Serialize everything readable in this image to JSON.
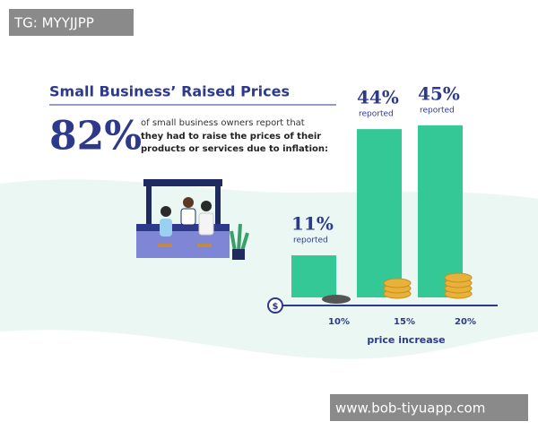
{
  "watermarks": [
    "TG: MYYJJPP",
    "www.bob-tiyuapp.com"
  ],
  "chart_data": {
    "type": "bar",
    "title": "Small Business’ Raised Prices",
    "stat": "82%",
    "description": "of small business owners report that",
    "description_bold": [
      "they had to raise the prices of their",
      "products or services due to inflation:"
    ],
    "categories": [
      "10%",
      "15%",
      "20%"
    ],
    "values": [
      11,
      44,
      45
    ],
    "value_labels": [
      "11%",
      "44%",
      "45%"
    ],
    "value_note": "reported",
    "axis_symbol": "$",
    "xlabel": "price increase",
    "color": "#33c896"
  }
}
